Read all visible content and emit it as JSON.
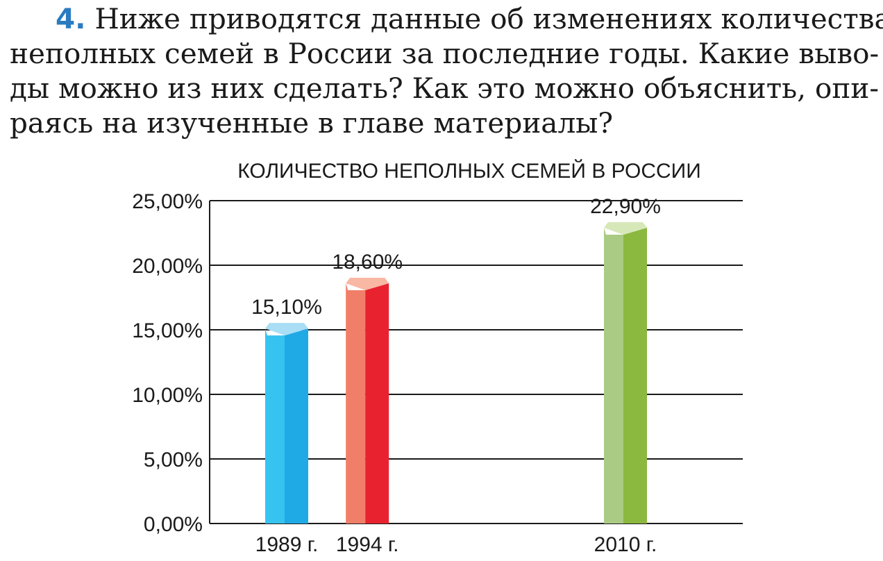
{
  "question": {
    "number": "4.",
    "lines": [
      "Ниже приводятся данные об изменениях количества",
      "неполных семей в России за последние годы. Какие выво-",
      "ды можно из них сделать? Как это можно объяснить, опи-",
      "раясь на изученные в главе материалы?"
    ]
  },
  "chart_data": {
    "type": "bar",
    "title": "КОЛИЧЕСТВО НЕПОЛНЫХ СЕМЕЙ В РОССИИ",
    "categories": [
      "1989 г.",
      "1994 г.",
      "2010 г."
    ],
    "x_years": [
      1989,
      1994,
      2010
    ],
    "values": [
      15.1,
      18.6,
      22.9
    ],
    "value_labels": [
      "15,10%",
      "18,60%",
      "22,90%"
    ],
    "y_ticks": [
      "0,00%",
      "5,00%",
      "10,00%",
      "15,00%",
      "20,00%",
      "25,00%"
    ],
    "y_tick_values": [
      0,
      5,
      10,
      15,
      20,
      25
    ],
    "ylim": [
      0,
      25
    ],
    "xlabel": "",
    "ylabel": "",
    "grid": true,
    "style": "3d-bars",
    "colors": [
      {
        "top": "#a9def5",
        "light": "#37c3f0",
        "dark": "#1faae6"
      },
      {
        "top": "#f9b8a4",
        "light": "#f07e68",
        "dark": "#e8232f"
      },
      {
        "top": "#d6e8b8",
        "light": "#aacb84",
        "dark": "#8bb83f"
      }
    ]
  }
}
